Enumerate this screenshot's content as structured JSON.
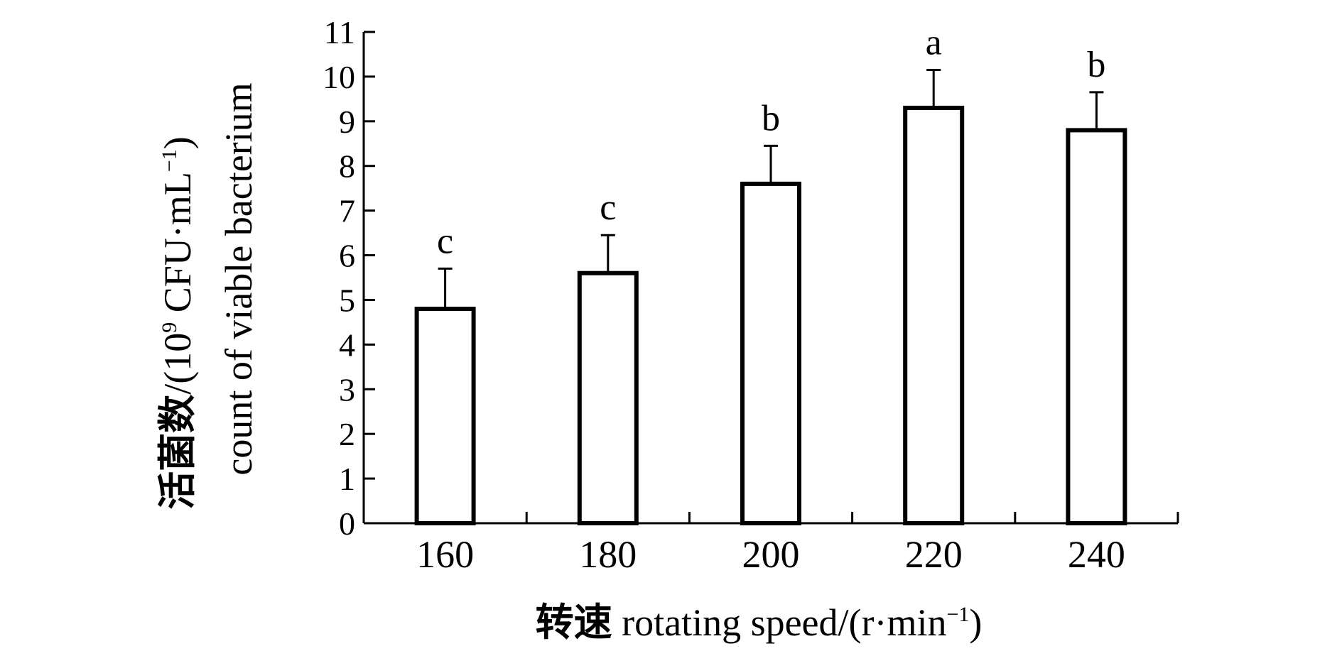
{
  "chart_data": {
    "type": "bar",
    "categories": [
      "160",
      "180",
      "200",
      "220",
      "240"
    ],
    "values": [
      4.8,
      5.6,
      7.6,
      9.3,
      8.8
    ],
    "errors": [
      0.9,
      0.85,
      0.85,
      0.85,
      0.85
    ],
    "significance": [
      "c",
      "c",
      "b",
      "a",
      "b"
    ],
    "xlabel_cn": "转速",
    "xlabel_en": "rotating speed/(r·min",
    "xlabel_sup": "−1",
    "xlabel_end": ")",
    "ylabel_line1_cn": "活菌数",
    "ylabel_line1_en": "/(10",
    "ylabel_line1_sup1": "9",
    "ylabel_line1_mid": " CFU·mL",
    "ylabel_line1_sup2": "−1",
    "ylabel_line1_end": ")",
    "ylabel_line2": "count of viable bacterium",
    "ylim": [
      0,
      11
    ],
    "yticks": [
      0,
      1,
      2,
      3,
      4,
      5,
      6,
      7,
      8,
      9,
      10,
      11
    ],
    "grid": false,
    "legend": "none",
    "bar_fill": "#ffffff",
    "bar_stroke": "#000000"
  }
}
